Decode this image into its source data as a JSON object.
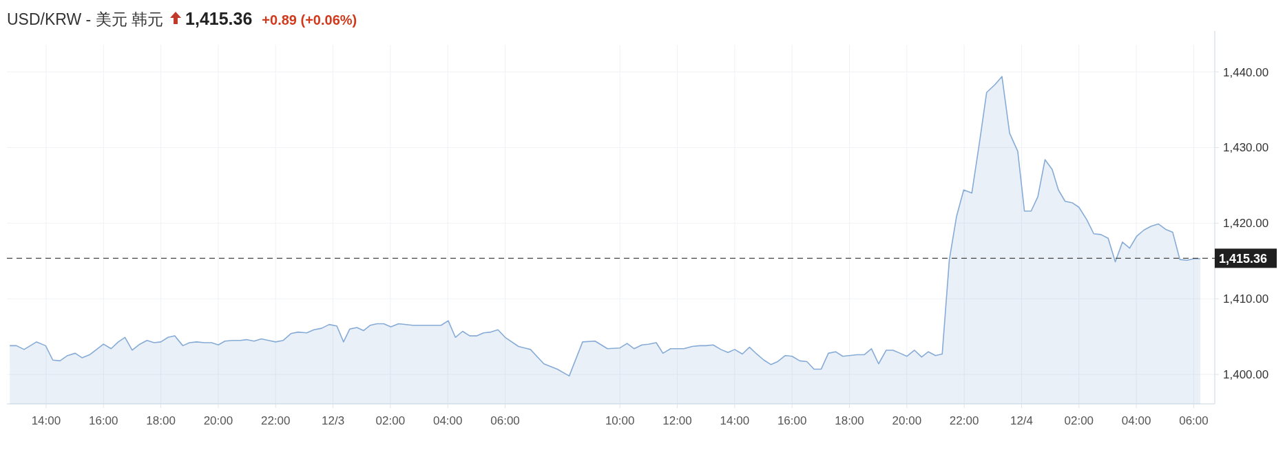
{
  "chart_data": {
    "type": "area",
    "title": "USD/KRW - 美元 韩元",
    "annotations": [
      "1,415.36",
      "+0.89 (+0.06%)"
    ],
    "x": [
      "--12-02T12:44",
      "--12-02T12:58",
      "--12-02T13:14",
      "--12-02T13:40",
      "--12-02T13:59",
      "--12-02T14:14",
      "--12-02T14:29",
      "--12-02T14:45",
      "--12-02T15:01",
      "--12-02T15:15",
      "--12-02T15:31",
      "--12-02T16:00",
      "--12-02T16:16",
      "--12-02T16:31",
      "--12-02T16:45",
      "--12-02T17:00",
      "--12-02T17:16",
      "--12-02T17:31",
      "--12-02T17:46",
      "--12-02T18:00",
      "--12-02T18:15",
      "--12-02T18:29",
      "--12-02T18:46",
      "--12-02T19:00",
      "--12-02T19:15",
      "--12-02T19:31",
      "--12-02T19:46",
      "--12-02T20:00",
      "--12-02T20:14",
      "--12-02T20:30",
      "--12-02T20:46",
      "--12-02T20:59",
      "--12-02T21:15",
      "--12-02T21:30",
      "--12-02T21:45",
      "--12-02T22:00",
      "--12-02T22:16",
      "--12-02T22:32",
      "--12-02T22:47",
      "--12-02T23:05",
      "--12-02T23:20",
      "--12-02T23:36",
      "--12-02T23:52",
      "--12-03T00:08",
      "--12-03T00:22",
      "--12-03T00:35",
      "--12-03T00:50",
      "--12-03T01:04",
      "--12-03T01:18",
      "--12-03T01:32",
      "--12-03T01:46",
      "--12-03T02:01",
      "--12-03T02:17",
      "--12-03T02:47",
      "--12-03T03:16",
      "--12-03T03:46",
      "--12-03T04:01",
      "--12-03T04:16",
      "--12-03T04:31",
      "--12-03T04:46",
      "--12-03T05:01",
      "--12-03T05:15",
      "--12-03T05:30",
      "--12-03T05:45",
      "--12-03T06:00",
      "--12-03T06:28",
      "--12-03T06:53",
      "--12-03T07:21",
      "--12-03T07:49",
      "--12-03T08:14",
      "--12-03T08:42",
      "--12-03T09:08",
      "--12-03T09:34",
      "--12-03T10:00",
      "--12-03T10:15",
      "--12-03T10:30",
      "--12-03T10:46",
      "--12-03T11:00",
      "--12-03T11:16",
      "--12-03T11:30",
      "--12-03T11:46",
      "--12-03T12:00",
      "--12-03T12:14",
      "--12-03T12:31",
      "--12-03T12:47",
      "--12-03T13:00",
      "--12-03T13:15",
      "--12-03T13:31",
      "--12-03T13:46",
      "--12-03T14:00",
      "--12-03T14:16",
      "--12-03T14:31",
      "--12-03T14:46",
      "--12-03T15:01",
      "--12-03T15:16",
      "--12-03T15:30",
      "--12-03T15:46",
      "--12-03T16:00",
      "--12-03T16:16",
      "--12-03T16:31",
      "--12-03T16:46",
      "--12-03T17:01",
      "--12-03T17:16",
      "--12-03T17:31",
      "--12-03T17:46",
      "--12-03T18:00",
      "--12-03T18:16",
      "--12-03T18:31",
      "--12-03T18:46",
      "--12-03T19:01",
      "--12-03T19:17",
      "--12-03T19:31",
      "--12-03T19:46",
      "--12-03T20:00",
      "--12-03T20:16",
      "--12-03T20:31",
      "--12-03T20:45",
      "--12-03T21:00",
      "--12-03T21:14",
      "--12-03T21:29",
      "--12-03T21:44",
      "--12-03T21:59",
      "--12-03T22:16",
      "--12-03T22:32",
      "--12-03T22:47",
      "--12-03T23:04",
      "--12-03T23:19",
      "--12-03T23:35",
      "--12-03T23:52",
      "--12-04T00:06",
      "--12-04T00:20",
      "--12-04T00:34",
      "--12-04T00:49",
      "--12-04T01:04",
      "--12-04T01:17",
      "--12-04T01:31",
      "--12-04T01:46",
      "--12-04T02:00",
      "--12-04T02:16",
      "--12-04T02:31",
      "--12-04T02:46",
      "--12-04T03:01",
      "--12-04T03:16",
      "--12-04T03:31",
      "--12-04T03:46",
      "--12-04T04:01",
      "--12-04T04:16",
      "--12-04T04:31",
      "--12-04T04:46",
      "--12-04T05:01",
      "--12-04T05:16",
      "--12-04T05:31",
      "--12-04T05:46",
      "--12-04T06:00",
      "--12-04T06:14"
    ],
    "series": [
      {
        "color": "#86abd6",
        "values": [
          1403.8,
          1403.8,
          1403.3,
          1404.3,
          1403.8,
          1401.9,
          1401.8,
          1402.5,
          1402.8,
          1402.2,
          1402.6,
          1404.0,
          1403.4,
          1404.3,
          1404.9,
          1403.2,
          1404.0,
          1404.5,
          1404.2,
          1404.3,
          1404.9,
          1405.1,
          1403.8,
          1404.2,
          1404.3,
          1404.2,
          1404.2,
          1403.9,
          1404.4,
          1404.5,
          1404.5,
          1404.6,
          1404.4,
          1404.7,
          1404.5,
          1404.3,
          1404.5,
          1405.4,
          1405.6,
          1405.5,
          1405.9,
          1406.1,
          1406.6,
          1406.4,
          1404.3,
          1406.0,
          1406.2,
          1405.8,
          1406.5,
          1406.7,
          1406.7,
          1406.3,
          1406.7,
          1406.5,
          1406.5,
          1406.5,
          1407.1,
          1404.9,
          1405.7,
          1405.1,
          1405.1,
          1405.5,
          1405.6,
          1405.9,
          1404.9,
          1403.7,
          1403.3,
          1401.4,
          1400.7,
          1399.8,
          1404.3,
          1404.4,
          1403.4,
          1403.5,
          1404.1,
          1403.4,
          1403.9,
          1404.0,
          1404.2,
          1402.8,
          1403.4,
          1403.4,
          1403.4,
          1403.7,
          1403.8,
          1403.8,
          1403.9,
          1403.3,
          1402.9,
          1403.3,
          1402.7,
          1403.6,
          1402.7,
          1401.9,
          1401.3,
          1401.7,
          1402.5,
          1402.4,
          1401.8,
          1401.7,
          1400.7,
          1400.7,
          1402.8,
          1403.0,
          1402.4,
          1402.5,
          1402.6,
          1402.6,
          1403.4,
          1401.4,
          1403.2,
          1403.2,
          1402.8,
          1402.4,
          1403.2,
          1402.3,
          1403.0,
          1402.5,
          1402.7,
          1415.2,
          1420.9,
          1424.4,
          1424.0,
          1430.7,
          1437.3,
          1438.3,
          1439.4,
          1431.9,
          1429.5,
          1421.6,
          1421.6,
          1423.5,
          1428.4,
          1427.1,
          1424.4,
          1422.9,
          1422.7,
          1422.1,
          1420.5,
          1418.6,
          1418.5,
          1418.0,
          1414.9,
          1417.5,
          1416.7,
          1418.3,
          1419.1,
          1419.6,
          1419.9,
          1419.2,
          1418.8,
          1415.2,
          1415.1,
          1415.3,
          1415.3
        ]
      }
    ],
    "xlim": [
      "--12-02T12:38",
      "--12-04T06:44"
    ],
    "xticks": [
      {
        "value": "--12-02T14:00",
        "label": "14:00"
      },
      {
        "value": "--12-02T16:00",
        "label": "16:00"
      },
      {
        "value": "--12-02T18:00",
        "label": "18:00"
      },
      {
        "value": "--12-02T20:00",
        "label": "20:00"
      },
      {
        "value": "--12-02T22:00",
        "label": "22:00"
      },
      {
        "value": "--12-03T00:00",
        "label": "12/3"
      },
      {
        "value": "--12-03T02:00",
        "label": "02:00"
      },
      {
        "value": "--12-03T04:00",
        "label": "04:00"
      },
      {
        "value": "--12-03T06:00",
        "label": "06:00"
      },
      {
        "value": "--12-03T10:00",
        "label": "10:00"
      },
      {
        "value": "--12-03T12:00",
        "label": "12:00"
      },
      {
        "value": "--12-03T14:00",
        "label": "14:00"
      },
      {
        "value": "--12-03T16:00",
        "label": "16:00"
      },
      {
        "value": "--12-03T18:00",
        "label": "18:00"
      },
      {
        "value": "--12-03T20:00",
        "label": "20:00"
      },
      {
        "value": "--12-03T22:00",
        "label": "22:00"
      },
      {
        "value": "--12-04T00:00",
        "label": "12/4"
      },
      {
        "value": "--12-04T02:00",
        "label": "02:00"
      },
      {
        "value": "--12-04T04:00",
        "label": "04:00"
      },
      {
        "value": "--12-04T06:00",
        "label": "06:00"
      }
    ],
    "ylim": [
      1396.1,
      1443.6
    ],
    "yticks": [
      {
        "value": 1400,
        "label": "1,400.00"
      },
      {
        "value": 1410,
        "label": "1,410.00"
      },
      {
        "value": 1420,
        "label": "1,420.00"
      },
      {
        "value": 1430,
        "label": "1,430.00"
      },
      {
        "value": 1440,
        "label": "1,440.00"
      }
    ],
    "grid": true,
    "ref_lines": [
      {
        "axis": "y",
        "value": 1415.36,
        "label": "1,415.36",
        "color": "#444444",
        "line_style": "dashed"
      }
    ]
  }
}
